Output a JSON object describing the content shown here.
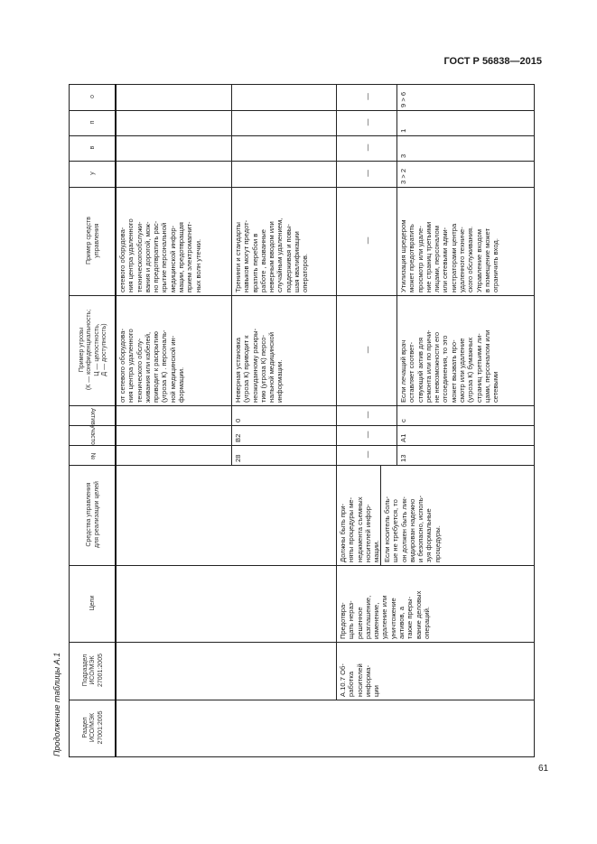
{
  "header": {
    "doc_code": "ГОСТ Р 56838—2015"
  },
  "caption": "Продолжение таблицы А.1",
  "page_number": "61",
  "table": {
    "headers": {
      "razdel": "Раздел\nИСО/МЭК\n27001:2005",
      "podrazdel": "Подраздел\nИСО/МЭК\n27001:2005",
      "celi": "Цели",
      "sredstva": "Средства управления\nдля реализации целей",
      "num": "№",
      "uchastok": "участок",
      "aktiv": "Актив",
      "ugroza": "Пример угрозы\n(К — конфиденциальность;\nЦ — целостность,\nД — доступность)",
      "primer_sredstv": "Пример средств\nуправления",
      "u": "у",
      "v": "в",
      "p": "п",
      "o": "о"
    },
    "group_a": {
      "razdel": "",
      "podrazdel": "",
      "celi": "",
      "sredstva": ""
    },
    "group_b": {
      "podrazdel": "А.10.7 Об-\nработка\nносителей\nинформа-\nции",
      "celi": "Предотвра-\nщать нераз-\nрешенное\nразглашение,\nизменение,\nудаление или\nуничтожение\nактивов, а\nтакже преры-\nвание деловых\nопераций.",
      "sredstva_1": "Должны быть при-\nняты процедуры ме-\nнеджмента съемных\nносителей инфор-\nмации.",
      "sredstva_2": "Если носитель боль-\nше не требуется, то\nон должен быть лик-\nвидирован надежно\nи безопасно, исполь-\nзуя формальные\nпроцедуры."
    },
    "rows": [
      {
        "num": "",
        "uchastok": "",
        "aktiv": "",
        "ugroza": "от сетевого оборудова-\nния центра удаленного\nтехнического обслу-\nживания или кабелей,\nприводит к раскрытию\n(угроза К) . персональ-\nной медицинской ин-\nформации.",
        "primer_sredstv": "сетевого оборудова-\nния центра удаленного\nтехническогообслужи-\nвания и дорогой, мож-\nно предотвратить рас-\nкрытие персональной\nмедицинской инфор-\nмации, предотвращая\nприем электромагнит-\nных волн утечки.",
        "u": "",
        "v": "",
        "p": "",
        "o": ""
      },
      {
        "num": "28",
        "uchastok": "B2",
        "aktiv": "0",
        "ugroza": "Неверная установка\n(угроза К) приводит к\nнеожиданному раскры-\nтию (угроза К) персо-\nнальной медицинской\nинформации.",
        "primer_sredstv": "Тренинги и стандарты\nнавыков могут предот-\nвратить перебои в\nработе , вызванные\nневерным вводом или\nслучайным удалением,\nподдерживая и повы-\nшая квалификации\nоператоров.",
        "u": "",
        "v": "",
        "p": "",
        "o": ""
      },
      {
        "num": "—",
        "uchastok": "—",
        "aktiv": "—",
        "ugroza": "—",
        "primer_sredstv": "—",
        "u": "—",
        "v": "—",
        "p": "—",
        "o": "—"
      },
      {
        "num": "13",
        "uchastok": "A1",
        "aktiv": "c",
        "ugroza": "Если лечащий врач\nоставляет соответ-\nствующий актив для\nремонта или по причи-\nне невозможности его\nотсоединения, то это\nможет вызвать про-\nсмотр или удаление\n(угроза К) бумажных\nстраниц третьими ли-\nцами, персоналом или\nсетевыми",
        "primer_sredstv": "Утилизация шредером\nможет предотвратить\nпросмотр или удале-\nние страниц третьими\nлицами, персоналом\nили сетевыми адми-\nнистраторами центра\nудаленного техниче-\nского обслуживания.\nУправление входом\nв помещение может\nограничить вход.",
        "u": "3 > 2",
        "v": "3",
        "p": "1",
        "o": "9 > 6"
      }
    ]
  }
}
